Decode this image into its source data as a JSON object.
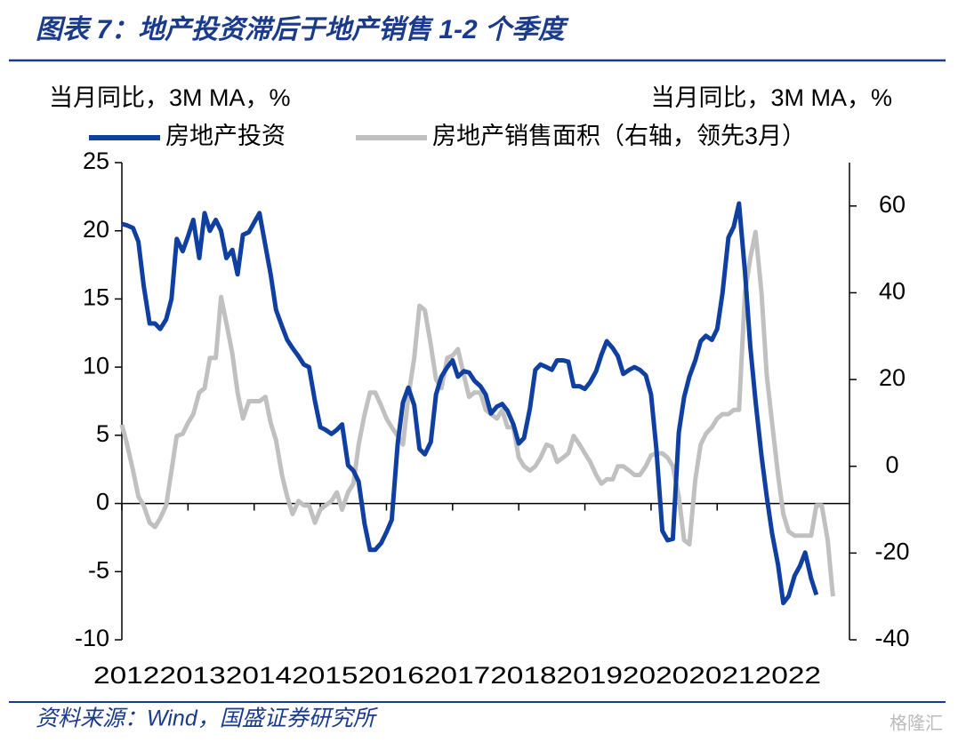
{
  "header": {
    "title": "图表 7：地产投资滞后于地产销售 1-2 个季度"
  },
  "chart_data": {
    "type": "line",
    "ylabel": "当月同比，3M MA，%",
    "y2label": "当月同比，3M MA，%",
    "legend": "top",
    "x": [
      2012,
      2012.08,
      2012.17,
      2012.25,
      2012.33,
      2012.42,
      2012.5,
      2012.58,
      2012.67,
      2012.75,
      2012.83,
      2012.92,
      2013,
      2013.08,
      2013.17,
      2013.25,
      2013.33,
      2013.42,
      2013.5,
      2013.58,
      2013.67,
      2013.75,
      2013.83,
      2013.92,
      2014,
      2014.08,
      2014.17,
      2014.25,
      2014.33,
      2014.42,
      2014.5,
      2014.58,
      2014.67,
      2014.75,
      2014.83,
      2014.92,
      2015,
      2015.08,
      2015.17,
      2015.25,
      2015.33,
      2015.42,
      2015.5,
      2015.58,
      2015.67,
      2015.75,
      2015.83,
      2015.92,
      2016,
      2016.08,
      2016.17,
      2016.25,
      2016.33,
      2016.42,
      2016.5,
      2016.58,
      2016.67,
      2016.75,
      2016.83,
      2016.92,
      2017,
      2017.08,
      2017.17,
      2017.25,
      2017.33,
      2017.42,
      2017.5,
      2017.58,
      2017.67,
      2017.75,
      2017.83,
      2017.92,
      2018,
      2018.08,
      2018.17,
      2018.25,
      2018.33,
      2018.42,
      2018.5,
      2018.58,
      2018.67,
      2018.75,
      2018.83,
      2018.92,
      2019,
      2019.08,
      2019.17,
      2019.25,
      2019.33,
      2019.42,
      2019.5,
      2019.58,
      2019.67,
      2019.75,
      2019.83,
      2019.92,
      2020,
      2020.08,
      2020.17,
      2020.25,
      2020.33,
      2020.42,
      2020.5,
      2020.58,
      2020.67,
      2020.75,
      2020.83,
      2020.92,
      2021,
      2021.08,
      2021.17,
      2021.25,
      2021.33,
      2021.42,
      2021.5,
      2021.58,
      2021.67,
      2021.75,
      2021.83,
      2021.92,
      2022,
      2022.08,
      2022.17,
      2022.25,
      2022.33,
      2022.42,
      2022.5,
      2022.58,
      2022.67,
      2022.75
    ],
    "xlim": [
      2012,
      2023
    ],
    "xticks": [
      2012,
      2013,
      2014,
      2015,
      2016,
      2017,
      2018,
      2019,
      2020,
      2021,
      2022
    ],
    "ylim": [
      -10,
      25
    ],
    "yticks": [
      -10,
      -5,
      0,
      5,
      10,
      15,
      20,
      25
    ],
    "y2lim": [
      -40,
      70
    ],
    "y2ticks": [
      -40,
      -20,
      0,
      20,
      40,
      60
    ],
    "series": [
      {
        "name": "房地产投资",
        "color": "#0f3fa0",
        "values": [
          20.5,
          20.4,
          20.2,
          19.2,
          16.0,
          13.2,
          13.2,
          12.8,
          13.5,
          15.0,
          19.4,
          18.5,
          19.6,
          20.8,
          18.0,
          21.3,
          20.0,
          20.8,
          20.0,
          18.0,
          18.6,
          16.8,
          19.7,
          19.9,
          20.6,
          21.3,
          18.9,
          16.8,
          14.2,
          13.0,
          12.0,
          11.4,
          10.8,
          10.2,
          10.0,
          7.5,
          5.6,
          5.4,
          5.1,
          5.4,
          5.8,
          2.8,
          2.4,
          1.6,
          -1.5,
          -3.4,
          -3.4,
          -2.9,
          -2.1,
          -1.2,
          4.4,
          7.4,
          8.5,
          7.2,
          4.0,
          3.6,
          4.5,
          8.0,
          9.3,
          10.0,
          10.5,
          9.3,
          9.7,
          9.6,
          9.0,
          8.6,
          8.0,
          6.6,
          7.1,
          7.3,
          6.8,
          5.8,
          4.4,
          4.8,
          7.0,
          9.8,
          10.2,
          10.0,
          9.8,
          10.5,
          10.5,
          10.4,
          8.6,
          8.6,
          8.4,
          8.9,
          9.7,
          10.9,
          11.9,
          11.4,
          10.8,
          9.5,
          9.8,
          10.0,
          9.8,
          9.4,
          8.0,
          4.0,
          -2.0,
          -2.7,
          -2.6,
          5.2,
          7.8,
          9.3,
          10.5,
          11.9,
          12.3,
          12.0,
          12.8,
          15.4,
          19.5,
          20.3,
          22.0,
          17.0,
          11.5,
          7.5,
          3.5,
          0.5,
          -2.2,
          -4.5,
          -7.3,
          -6.8,
          -5.3,
          -4.6,
          -3.6,
          -5.5,
          -6.7,
          null,
          null,
          null
        ]
      },
      {
        "name": "房地产销售面积（右轴，领先3月）",
        "color": "#c0c0c0",
        "axis": "y2",
        "values": [
          9.6,
          5,
          -1,
          -7,
          -9,
          -13,
          -14,
          -12,
          -9,
          -1,
          7,
          7.5,
          10,
          12,
          17,
          18,
          25,
          25,
          39,
          33,
          26,
          17,
          11,
          15,
          15,
          15,
          16,
          10,
          6,
          -2,
          -7,
          -11,
          -8,
          -9,
          -9,
          -13,
          -10,
          -9,
          -8,
          -6,
          -10,
          -6,
          -4,
          5,
          12,
          17,
          17,
          14,
          11,
          9,
          7,
          5,
          16,
          25,
          37,
          36,
          28,
          20,
          18,
          25,
          25.5,
          27,
          21,
          16,
          17,
          17,
          13,
          12,
          11,
          13,
          9,
          9,
          2,
          0,
          -1,
          0,
          2,
          5,
          4.5,
          1,
          2,
          3,
          7,
          5,
          3,
          1,
          -2,
          -4,
          -3,
          -3,
          0,
          0,
          -1,
          -2,
          -2,
          0,
          2.5,
          3,
          3,
          2,
          0,
          -7,
          -17,
          -18,
          -3,
          5,
          7.5,
          9,
          11,
          12,
          12,
          13,
          13,
          40,
          48,
          54,
          40,
          21,
          10,
          -2,
          -11,
          -15,
          -16,
          -16,
          -16,
          -16,
          -9,
          -9,
          -17,
          -30
        ]
      }
    ]
  },
  "footer": {
    "source": "资料来源：Wind，国盛证券研究所",
    "watermark": "格隆汇"
  }
}
